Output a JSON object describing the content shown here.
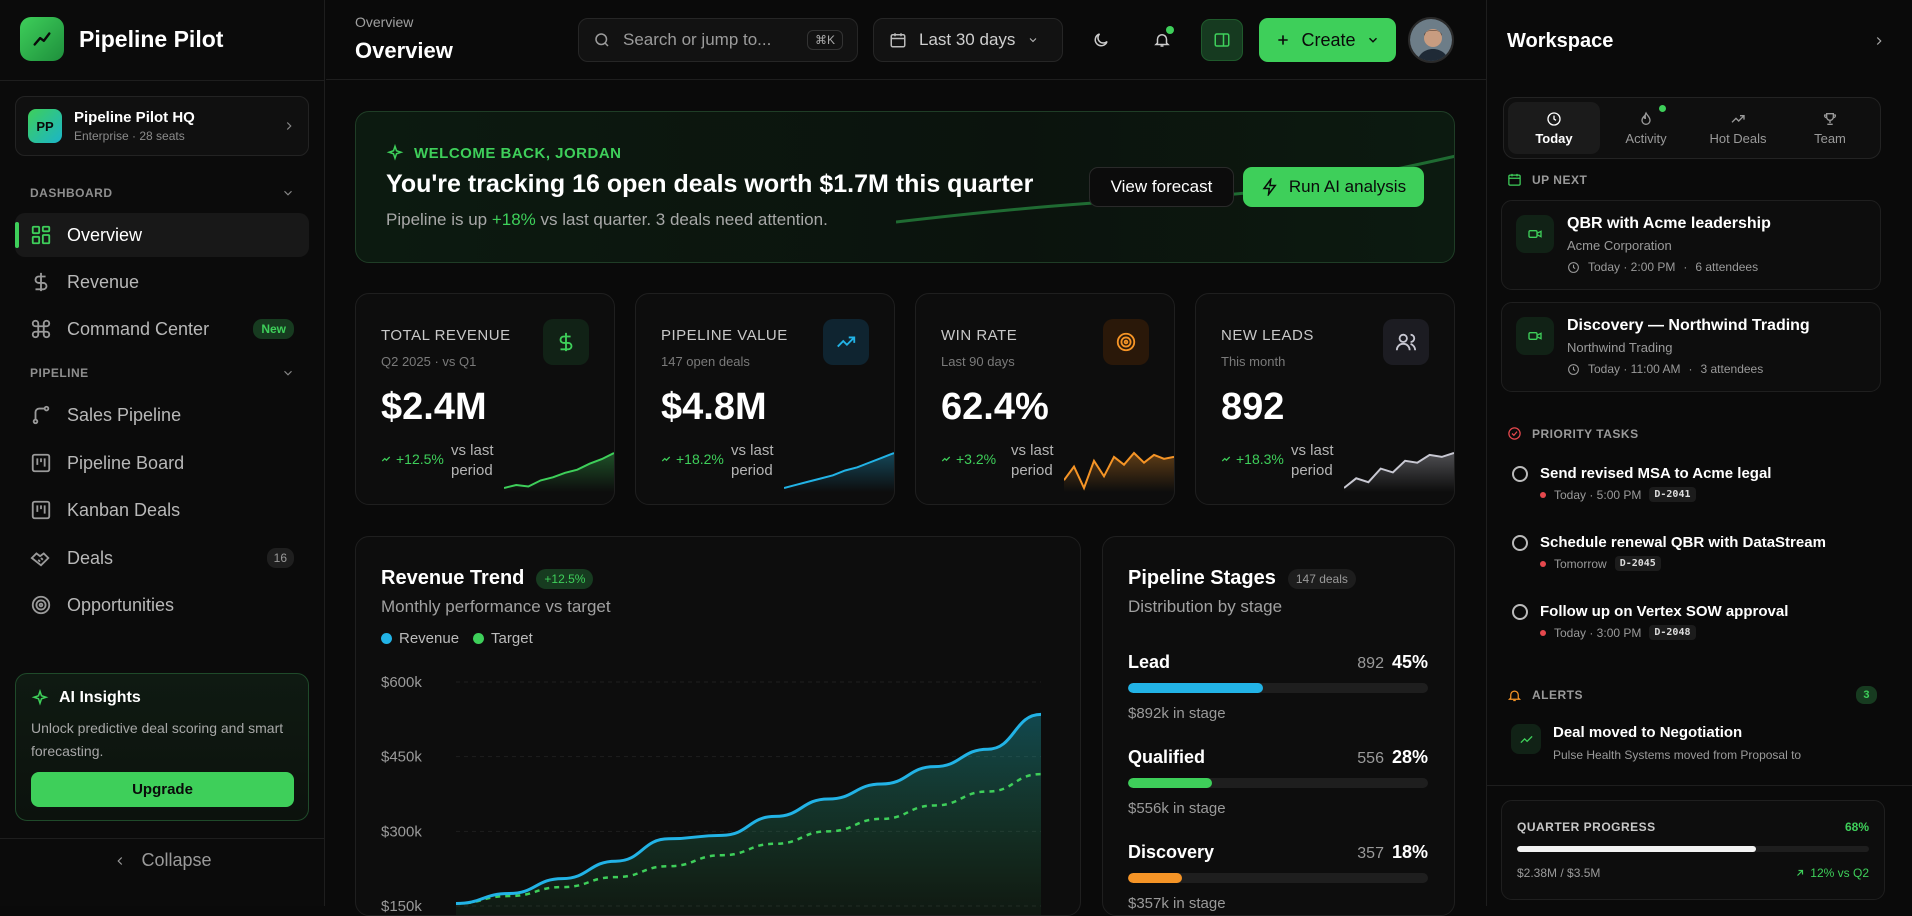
{
  "brand": {
    "name": "Pipeline Pilot"
  },
  "org": {
    "initials": "PP",
    "name": "Pipeline Pilot HQ",
    "sub": "Enterprise · 28 seats"
  },
  "sidebar": {
    "dashboard_label": "DASHBOARD",
    "pipeline_label": "PIPELINE",
    "items": [
      {
        "label": "Overview",
        "icon": "grid-icon"
      },
      {
        "label": "Revenue",
        "icon": "dollar-icon"
      },
      {
        "label": "Command Center",
        "icon": "command-icon",
        "badge": "New"
      },
      {
        "label": "Sales Pipeline",
        "icon": "branch-icon"
      },
      {
        "label": "Pipeline Board",
        "icon": "board-icon"
      },
      {
        "label": "Kanban Deals",
        "icon": "kanban-icon"
      },
      {
        "label": "Deals",
        "icon": "handshake-icon",
        "count": "16"
      },
      {
        "label": "Opportunities",
        "icon": "target-icon"
      }
    ],
    "ai": {
      "title": "AI Insights",
      "desc": "Unlock predictive deal scoring and smart forecasting.",
      "button": "Upgrade"
    },
    "collapse": "Collapse"
  },
  "header": {
    "crumb": "Overview",
    "title": "Overview",
    "search_placeholder": "Search or jump to...",
    "shortcut": "⌘K",
    "date_range": "Last 30 days",
    "create": "Create"
  },
  "hero": {
    "kicker": "WELCOME BACK, JORDAN",
    "headline": "You're tracking 16 open deals worth $1.7M this quarter",
    "sub_pre": "Pipeline is up ",
    "sub_highlight": "+18%",
    "sub_post": " vs last quarter. 3 deals need attention.",
    "view_forecast": "View forecast",
    "run_ai": "Run AI analysis"
  },
  "kpis": [
    {
      "label": "TOTAL REVENUE",
      "sub": "Q2 2025 · vs Q1",
      "value": "$2.4M",
      "delta": "+12.5%",
      "vs": "vs last period",
      "color": "#3ecf5a",
      "icon": "dollar-icon",
      "spark": [
        12,
        14,
        13,
        17,
        19,
        22,
        24,
        28,
        31,
        35
      ]
    },
    {
      "label": "PIPELINE VALUE",
      "sub": "147 open deals",
      "value": "$4.8M",
      "delta": "+18.2%",
      "vs": "vs last period",
      "color": "#22b3e6",
      "icon": "trend-up-icon",
      "spark": [
        10,
        12,
        14,
        16,
        18,
        21,
        23,
        26,
        29,
        32
      ]
    },
    {
      "label": "WIN RATE",
      "sub": "Last 90 days",
      "value": "62.4%",
      "delta": "+3.2%",
      "vs": "vs last period",
      "color": "#f59426",
      "icon": "target-icon",
      "spark": [
        18,
        25,
        14,
        28,
        20,
        30,
        26,
        32,
        27,
        31,
        29,
        30
      ]
    },
    {
      "label": "NEW LEADS",
      "sub": "This month",
      "value": "892",
      "delta": "+18.3%",
      "vs": "vs last period",
      "color": "#c8c8d2",
      "icon": "users-icon",
      "spark": [
        10,
        15,
        13,
        20,
        18,
        24,
        23,
        27,
        26,
        28
      ]
    }
  ],
  "revenue_trend": {
    "title": "Revenue Trend",
    "badge": "+12.5%",
    "sub": "Monthly performance vs target",
    "legend": [
      "Revenue",
      "Target"
    ]
  },
  "pipeline_stages": {
    "title": "Pipeline Stages",
    "badge": "147 deals",
    "sub": "Distribution by stage",
    "stages": [
      {
        "name": "Lead",
        "count": "892",
        "pct": "45%",
        "value": "$892k in stage",
        "color": "#22b3e6",
        "fill": 0.45
      },
      {
        "name": "Qualified",
        "count": "556",
        "pct": "28%",
        "value": "$556k in stage",
        "color": "#3ecf5a",
        "fill": 0.28
      },
      {
        "name": "Discovery",
        "count": "357",
        "pct": "18%",
        "value": "$357k in stage",
        "color": "#f59426",
        "fill": 0.18
      }
    ]
  },
  "chart_data": {
    "type": "area",
    "title": "Revenue Trend",
    "y_ticks": [
      "$600k",
      "$450k",
      "$300k",
      "$150k"
    ],
    "ylim": [
      150,
      600
    ],
    "series": [
      {
        "name": "Revenue",
        "color": "#22b3e6",
        "values": [
          155,
          175,
          205,
          240,
          285,
          292,
          330,
          365,
          395,
          430,
          465,
          535
        ]
      },
      {
        "name": "Target",
        "color": "#3ecf5a",
        "values": [
          155,
          170,
          188,
          208,
          230,
          252,
          275,
          300,
          325,
          352,
          380,
          415
        ]
      }
    ]
  },
  "rpanel": {
    "title": "Workspace",
    "tabs": [
      {
        "label": "Today",
        "icon": "clock-icon"
      },
      {
        "label": "Activity",
        "icon": "flame-icon"
      },
      {
        "label": "Hot Deals",
        "icon": "trend-up-icon"
      },
      {
        "label": "Team",
        "icon": "trophy-icon"
      }
    ],
    "up_next": "UP NEXT",
    "events": [
      {
        "title": "QBR with Acme leadership",
        "org": "Acme Corporation",
        "time": "Today · 2:00 PM",
        "attendees": "6 attendees"
      },
      {
        "title": "Discovery — Northwind Trading",
        "org": "Northwind Trading",
        "time": "Today · 11:00 AM",
        "attendees": "3 attendees"
      }
    ],
    "priority": "PRIORITY TASKS",
    "tasks": [
      {
        "title": "Send revised MSA to Acme legal",
        "due": "Today · 5:00 PM",
        "id": "D-2041"
      },
      {
        "title": "Schedule renewal QBR with DataStream",
        "due": "Tomorrow",
        "id": "D-2045"
      },
      {
        "title": "Follow up on Vertex SOW approval",
        "due": "Today · 3:00 PM",
        "id": "D-2048"
      }
    ],
    "alerts": "ALERTS",
    "alert_count": "3",
    "alert": {
      "title": "Deal moved to Negotiation",
      "sub": "Pulse Health Systems moved from Proposal to"
    },
    "quarter": {
      "label": "QUARTER PROGRESS",
      "pct": "68%",
      "fill": 0.68,
      "amount": "$2.38M / $3.5M",
      "delta": "12% vs Q2"
    }
  }
}
